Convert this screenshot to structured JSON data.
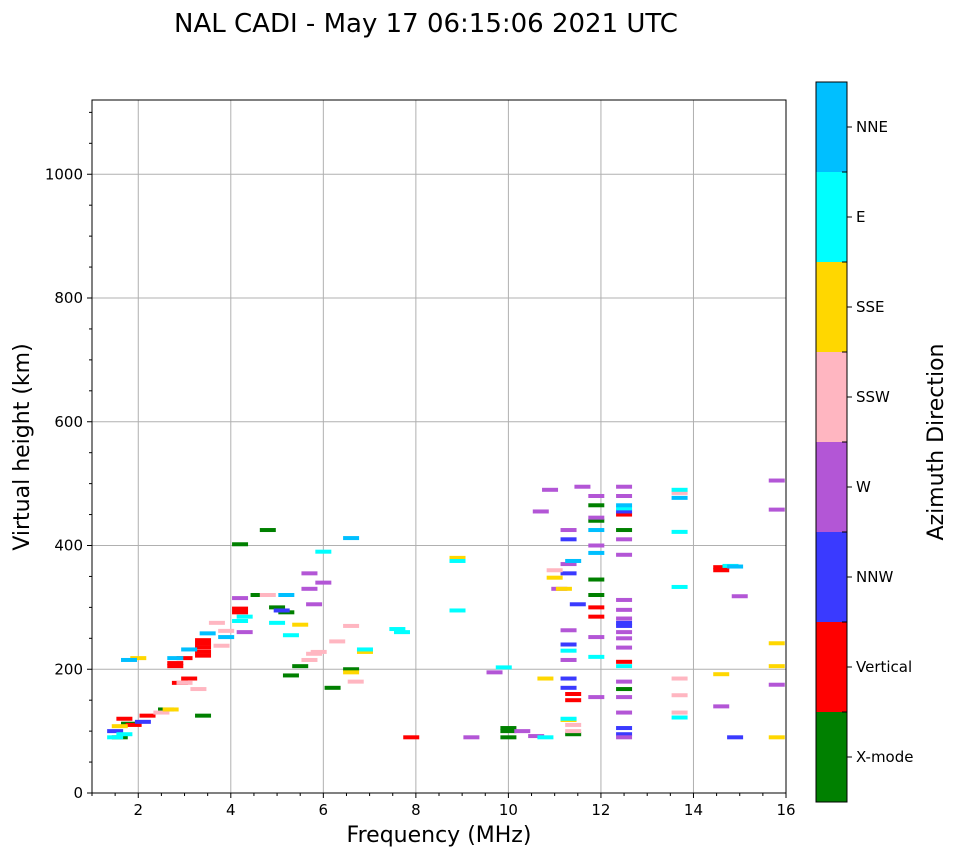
{
  "chart_data": {
    "type": "scatter",
    "title": "NAL CADI - May 17 06:15:06 2021 UTC",
    "xlabel": "Frequency (MHz)",
    "ylabel": "Virtual height (km)",
    "xlim": [
      1,
      16
    ],
    "ylim": [
      0,
      1120
    ],
    "xticks": [
      2,
      4,
      6,
      8,
      10,
      12,
      14,
      16
    ],
    "yticks": [
      0,
      200,
      400,
      600,
      800,
      1000
    ],
    "grid": true,
    "colorbar": {
      "label": "Azimuth Direction",
      "categories": [
        "X-mode",
        "Vertical",
        "NNW",
        "W",
        "SSW",
        "SSE",
        "E",
        "NNE"
      ],
      "colors": [
        "#008000",
        "#ff0000",
        "#3a3aff",
        "#b356d6",
        "#ffb6c1",
        "#ffd700",
        "#00ffff",
        "#00bfff"
      ]
    },
    "series": [
      {
        "name": "X-mode",
        "points": [
          [
            1.6,
            90
          ],
          [
            1.8,
            112
          ],
          [
            2.6,
            135
          ],
          [
            3.4,
            125
          ],
          [
            4.2,
            402
          ],
          [
            4.8,
            425
          ],
          [
            4.6,
            320
          ],
          [
            5.0,
            300
          ],
          [
            5.2,
            292
          ],
          [
            5.5,
            205
          ],
          [
            5.3,
            190
          ],
          [
            6.2,
            170
          ],
          [
            6.6,
            200
          ],
          [
            10.0,
            90
          ],
          [
            10.0,
            100
          ],
          [
            10.0,
            105
          ],
          [
            11.4,
            95
          ],
          [
            11.9,
            320
          ],
          [
            11.9,
            345
          ],
          [
            11.9,
            440
          ],
          [
            11.9,
            465
          ],
          [
            12.5,
            168
          ],
          [
            12.5,
            425
          ]
        ]
      },
      {
        "name": "Vertical",
        "points": [
          [
            1.7,
            120
          ],
          [
            1.9,
            110
          ],
          [
            2.2,
            125
          ],
          [
            2.8,
            210
          ],
          [
            2.8,
            205
          ],
          [
            2.9,
            178
          ],
          [
            3.0,
            218
          ],
          [
            3.1,
            185
          ],
          [
            3.4,
            222
          ],
          [
            3.4,
            228
          ],
          [
            3.4,
            235
          ],
          [
            3.4,
            241
          ],
          [
            3.4,
            247
          ],
          [
            4.2,
            298
          ],
          [
            4.2,
            292
          ],
          [
            7.9,
            90
          ],
          [
            11.4,
            160
          ],
          [
            11.4,
            150
          ],
          [
            11.9,
            285
          ],
          [
            11.9,
            300
          ],
          [
            12.5,
            212
          ],
          [
            12.5,
            450
          ],
          [
            14.6,
            360
          ],
          [
            14.6,
            365
          ]
        ]
      },
      {
        "name": "NNW",
        "points": [
          [
            1.5,
            100
          ],
          [
            2.1,
            115
          ],
          [
            5.1,
            295
          ],
          [
            11.3,
            410
          ],
          [
            11.3,
            355
          ],
          [
            11.3,
            240
          ],
          [
            11.3,
            185
          ],
          [
            11.3,
            170
          ],
          [
            11.5,
            305
          ],
          [
            12.5,
            95
          ],
          [
            12.5,
            105
          ],
          [
            12.5,
            270
          ],
          [
            12.5,
            275
          ],
          [
            12.5,
            455
          ],
          [
            14.9,
            90
          ]
        ]
      },
      {
        "name": "W",
        "points": [
          [
            4.2,
            315
          ],
          [
            4.3,
            260
          ],
          [
            5.7,
            355
          ],
          [
            5.7,
            330
          ],
          [
            5.8,
            305
          ],
          [
            6.0,
            340
          ],
          [
            9.2,
            90
          ],
          [
            9.7,
            195
          ],
          [
            10.3,
            100
          ],
          [
            10.6,
            92
          ],
          [
            10.7,
            455
          ],
          [
            10.9,
            490
          ],
          [
            11.1,
            330
          ],
          [
            11.3,
            425
          ],
          [
            11.3,
            370
          ],
          [
            11.3,
            263
          ],
          [
            11.3,
            215
          ],
          [
            11.6,
            495
          ],
          [
            11.9,
            480
          ],
          [
            11.9,
            445
          ],
          [
            11.9,
            400
          ],
          [
            11.9,
            252
          ],
          [
            11.9,
            155
          ],
          [
            12.5,
            90
          ],
          [
            12.5,
            130
          ],
          [
            12.5,
            155
          ],
          [
            12.5,
            180
          ],
          [
            12.5,
            235
          ],
          [
            12.5,
            250
          ],
          [
            12.5,
            260
          ],
          [
            12.5,
            282
          ],
          [
            12.5,
            296
          ],
          [
            12.5,
            312
          ],
          [
            12.5,
            385
          ],
          [
            12.5,
            410
          ],
          [
            12.5,
            480
          ],
          [
            12.5,
            495
          ],
          [
            14.6,
            140
          ],
          [
            15.0,
            318
          ],
          [
            15.8,
            175
          ],
          [
            15.8,
            458
          ],
          [
            15.8,
            505
          ]
        ]
      },
      {
        "name": "SSW",
        "points": [
          [
            2.5,
            130
          ],
          [
            3.0,
            178
          ],
          [
            3.3,
            168
          ],
          [
            3.7,
            275
          ],
          [
            3.8,
            238
          ],
          [
            3.9,
            262
          ],
          [
            4.8,
            320
          ],
          [
            5.7,
            215
          ],
          [
            5.8,
            225
          ],
          [
            5.9,
            228
          ],
          [
            6.3,
            245
          ],
          [
            6.6,
            270
          ],
          [
            6.7,
            180
          ],
          [
            11.0,
            360
          ],
          [
            11.4,
            100
          ],
          [
            11.4,
            110
          ],
          [
            13.7,
            185
          ],
          [
            13.7,
            158
          ],
          [
            13.7,
            130
          ],
          [
            13.7,
            485
          ]
        ]
      },
      {
        "name": "SSE",
        "points": [
          [
            1.6,
            108
          ],
          [
            2.0,
            218
          ],
          [
            2.7,
            135
          ],
          [
            5.5,
            272
          ],
          [
            6.6,
            195
          ],
          [
            6.9,
            228
          ],
          [
            8.9,
            380
          ],
          [
            10.8,
            185
          ],
          [
            11.0,
            348
          ],
          [
            11.2,
            330
          ],
          [
            11.3,
            118
          ],
          [
            14.6,
            192
          ],
          [
            15.8,
            90
          ],
          [
            15.8,
            205
          ],
          [
            15.8,
            242
          ]
        ]
      },
      {
        "name": "E",
        "points": [
          [
            1.5,
            90
          ],
          [
            1.7,
            95
          ],
          [
            4.3,
            285
          ],
          [
            4.2,
            278
          ],
          [
            5.0,
            275
          ],
          [
            5.3,
            255
          ],
          [
            6.0,
            390
          ],
          [
            6.9,
            232
          ],
          [
            7.6,
            265
          ],
          [
            7.7,
            260
          ],
          [
            8.9,
            375
          ],
          [
            8.9,
            295
          ],
          [
            9.9,
            203
          ],
          [
            11.3,
            230
          ],
          [
            11.3,
            120
          ],
          [
            11.9,
            220
          ],
          [
            12.5,
            460
          ],
          [
            12.5,
            205
          ],
          [
            13.7,
            422
          ],
          [
            13.7,
            490
          ],
          [
            13.7,
            333
          ],
          [
            13.7,
            122
          ],
          [
            14.8,
            367
          ],
          [
            10.8,
            90
          ]
        ]
      },
      {
        "name": "NNE",
        "points": [
          [
            1.8,
            215
          ],
          [
            2.8,
            218
          ],
          [
            3.1,
            232
          ],
          [
            3.5,
            258
          ],
          [
            3.9,
            252
          ],
          [
            5.2,
            320
          ],
          [
            6.6,
            412
          ],
          [
            11.4,
            375
          ],
          [
            11.9,
            388
          ],
          [
            11.9,
            425
          ],
          [
            12.5,
            465
          ],
          [
            13.7,
            477
          ],
          [
            14.9,
            366
          ]
        ]
      }
    ]
  }
}
